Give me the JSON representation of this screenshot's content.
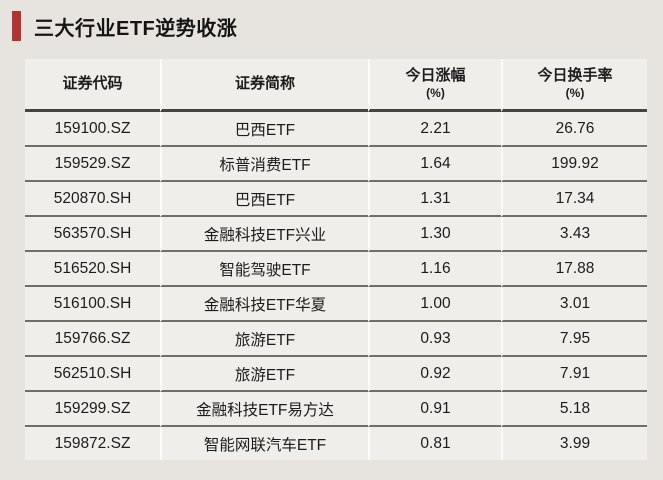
{
  "page": {
    "title": "三大行业ETF逆势收涨",
    "accent_color": "#b23431",
    "background_color": "#e7e4df",
    "cell_color": "#f0eeea"
  },
  "chart_data": {
    "type": "table",
    "title": "三大行业ETF逆势收涨",
    "columns": [
      {
        "label": "证券代码",
        "unit": ""
      },
      {
        "label": "证券简称",
        "unit": ""
      },
      {
        "label": "今日涨幅",
        "unit": "(%)"
      },
      {
        "label": "今日换手率",
        "unit": "(%)"
      }
    ],
    "rows": [
      [
        "159100.SZ",
        "巴西ETF",
        "2.21",
        "26.76"
      ],
      [
        "159529.SZ",
        "标普消费ETF",
        "1.64",
        "199.92"
      ],
      [
        "520870.SH",
        "巴西ETF",
        "1.31",
        "17.34"
      ],
      [
        "563570.SH",
        "金融科技ETF兴业",
        "1.30",
        "3.43"
      ],
      [
        "516520.SH",
        "智能驾驶ETF",
        "1.16",
        "17.88"
      ],
      [
        "516100.SH",
        "金融科技ETF华夏",
        "1.00",
        "3.01"
      ],
      [
        "159766.SZ",
        "旅游ETF",
        "0.93",
        "7.95"
      ],
      [
        "562510.SH",
        "旅游ETF",
        "0.92",
        "7.91"
      ],
      [
        "159299.SZ",
        "金融科技ETF易方达",
        "0.91",
        "5.18"
      ],
      [
        "159872.SZ",
        "智能网联汽车ETF",
        "0.81",
        "3.99"
      ]
    ]
  }
}
